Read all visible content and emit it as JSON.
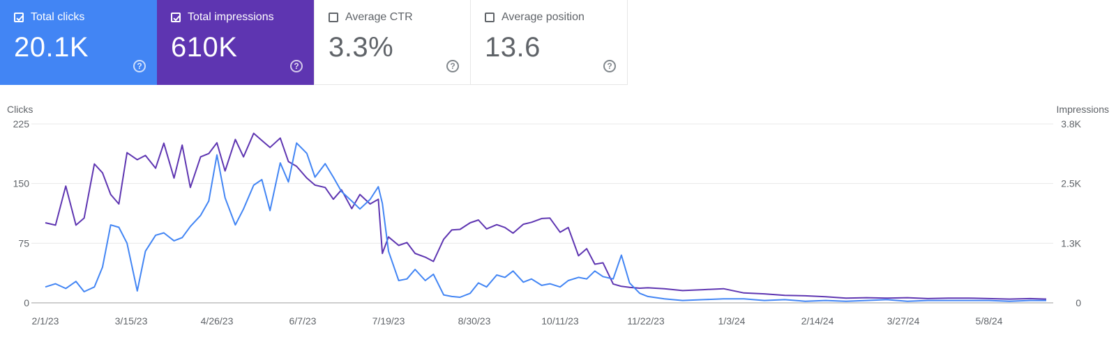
{
  "cards": [
    {
      "label": "Total clicks",
      "value": "20.1K",
      "checked": true,
      "color": "#4285f4"
    },
    {
      "label": "Total impressions",
      "value": "610K",
      "checked": true,
      "color": "#5e35b1"
    },
    {
      "label": "Average CTR",
      "value": "3.3%",
      "checked": false
    },
    {
      "label": "Average position",
      "value": "13.6",
      "checked": false
    }
  ],
  "help_glyph": "?",
  "chart_data": {
    "type": "line",
    "xlabel": "",
    "left_axis": {
      "label": "Clicks",
      "ticks": [
        "225",
        "150",
        "75",
        "0"
      ],
      "ylim": [
        0,
        225
      ]
    },
    "right_axis": {
      "label": "Impressions",
      "ticks": [
        "3.8K",
        "2.5K",
        "1.3K",
        "0"
      ],
      "ylim": [
        0,
        3800
      ]
    },
    "x_ticks": [
      "2/1/23",
      "3/15/23",
      "4/26/23",
      "6/7/23",
      "7/19/23",
      "8/30/23",
      "10/11/23",
      "11/22/23",
      "1/3/24",
      "2/14/24",
      "3/27/24",
      "5/8/24"
    ],
    "x_range": [
      "2023-02-01",
      "2024-06-05"
    ],
    "series": [
      {
        "name": "Clicks",
        "axis": "left",
        "color": "#4285f4",
        "x": [
          "2023-02-01",
          "2023-02-06",
          "2023-02-11",
          "2023-02-16",
          "2023-02-20",
          "2023-02-25",
          "2023-03-01",
          "2023-03-05",
          "2023-03-09",
          "2023-03-13",
          "2023-03-18",
          "2023-03-22",
          "2023-03-27",
          "2023-03-31",
          "2023-04-05",
          "2023-04-09",
          "2023-04-13",
          "2023-04-18",
          "2023-04-22",
          "2023-04-26",
          "2023-04-30",
          "2023-05-05",
          "2023-05-09",
          "2023-05-14",
          "2023-05-18",
          "2023-05-22",
          "2023-05-27",
          "2023-05-31",
          "2023-06-04",
          "2023-06-09",
          "2023-06-13",
          "2023-06-18",
          "2023-06-22",
          "2023-06-26",
          "2023-07-01",
          "2023-07-05",
          "2023-07-10",
          "2023-07-14",
          "2023-07-16",
          "2023-07-19",
          "2023-07-24",
          "2023-07-28",
          "2023-08-01",
          "2023-08-06",
          "2023-08-10",
          "2023-08-15",
          "2023-08-19",
          "2023-08-23",
          "2023-08-28",
          "2023-09-01",
          "2023-09-05",
          "2023-09-10",
          "2023-09-14",
          "2023-09-18",
          "2023-09-23",
          "2023-09-27",
          "2023-10-02",
          "2023-10-06",
          "2023-10-11",
          "2023-10-15",
          "2023-10-20",
          "2023-10-24",
          "2023-10-28",
          "2023-11-01",
          "2023-11-06",
          "2023-11-10",
          "2023-11-14",
          "2023-11-19",
          "2023-11-23",
          "2023-12-01",
          "2023-12-10",
          "2023-12-20",
          "2023-12-30",
          "2024-01-09",
          "2024-01-19",
          "2024-01-29",
          "2024-02-08",
          "2024-02-18",
          "2024-02-28",
          "2024-03-09",
          "2024-03-19",
          "2024-03-29",
          "2024-04-08",
          "2024-04-18",
          "2024-04-28",
          "2024-05-08",
          "2024-05-18",
          "2024-05-28",
          "2024-06-05"
        ],
        "values": [
          20,
          24,
          18,
          27,
          14,
          20,
          45,
          98,
          95,
          75,
          15,
          65,
          85,
          88,
          78,
          82,
          96,
          110,
          128,
          186,
          132,
          98,
          118,
          148,
          155,
          116,
          176,
          152,
          201,
          188,
          158,
          175,
          158,
          140,
          128,
          118,
          130,
          146,
          125,
          65,
          28,
          30,
          42,
          28,
          36,
          10,
          8,
          7,
          12,
          25,
          20,
          35,
          32,
          40,
          26,
          30,
          22,
          24,
          20,
          28,
          32,
          30,
          40,
          33,
          30,
          60,
          25,
          12,
          8,
          5,
          3,
          4,
          5,
          5,
          3,
          4,
          2,
          3,
          2,
          3,
          4,
          2,
          3,
          3,
          3,
          3,
          2,
          3,
          3
        ]
      },
      {
        "name": "Impressions",
        "axis": "right",
        "color": "#5e35b1",
        "x": [
          "2023-02-01",
          "2023-02-06",
          "2023-02-11",
          "2023-02-16",
          "2023-02-20",
          "2023-02-25",
          "2023-03-01",
          "2023-03-05",
          "2023-03-09",
          "2023-03-13",
          "2023-03-18",
          "2023-03-22",
          "2023-03-27",
          "2023-03-31",
          "2023-04-05",
          "2023-04-09",
          "2023-04-13",
          "2023-04-18",
          "2023-04-22",
          "2023-04-26",
          "2023-04-30",
          "2023-05-05",
          "2023-05-09",
          "2023-05-14",
          "2023-05-18",
          "2023-05-22",
          "2023-05-27",
          "2023-05-31",
          "2023-06-04",
          "2023-06-09",
          "2023-06-13",
          "2023-06-18",
          "2023-06-22",
          "2023-06-26",
          "2023-07-01",
          "2023-07-05",
          "2023-07-10",
          "2023-07-14",
          "2023-07-16",
          "2023-07-19",
          "2023-07-24",
          "2023-07-28",
          "2023-08-01",
          "2023-08-06",
          "2023-08-10",
          "2023-08-15",
          "2023-08-19",
          "2023-08-23",
          "2023-08-28",
          "2023-09-01",
          "2023-09-05",
          "2023-09-10",
          "2023-09-14",
          "2023-09-18",
          "2023-09-23",
          "2023-09-27",
          "2023-10-02",
          "2023-10-06",
          "2023-10-11",
          "2023-10-15",
          "2023-10-20",
          "2023-10-24",
          "2023-10-28",
          "2023-11-01",
          "2023-11-06",
          "2023-11-10",
          "2023-11-14",
          "2023-11-19",
          "2023-11-23",
          "2023-12-01",
          "2023-12-10",
          "2023-12-20",
          "2023-12-30",
          "2024-01-09",
          "2024-01-19",
          "2024-01-29",
          "2024-02-08",
          "2024-02-18",
          "2024-02-28",
          "2024-03-09",
          "2024-03-19",
          "2024-03-29",
          "2024-04-08",
          "2024-04-18",
          "2024-04-28",
          "2024-05-08",
          "2024-05-18",
          "2024-05-28",
          "2024-06-05"
        ],
        "values": [
          1700,
          1650,
          2480,
          1650,
          1800,
          2950,
          2760,
          2300,
          2100,
          3190,
          3040,
          3130,
          2860,
          3390,
          2650,
          3350,
          2450,
          3100,
          3170,
          3400,
          2800,
          3470,
          3100,
          3600,
          3450,
          3300,
          3500,
          3000,
          2900,
          2650,
          2500,
          2450,
          2200,
          2400,
          2000,
          2300,
          2100,
          2200,
          1050,
          1400,
          1220,
          1280,
          1050,
          970,
          880,
          1350,
          1550,
          1560,
          1700,
          1760,
          1570,
          1660,
          1600,
          1480,
          1670,
          1710,
          1790,
          1800,
          1500,
          1600,
          1000,
          1150,
          820,
          850,
          400,
          350,
          330,
          310,
          320,
          300,
          260,
          280,
          300,
          210,
          190,
          160,
          150,
          130,
          100,
          110,
          100,
          110,
          90,
          100,
          100,
          90,
          80,
          90,
          80
        ]
      }
    ]
  }
}
